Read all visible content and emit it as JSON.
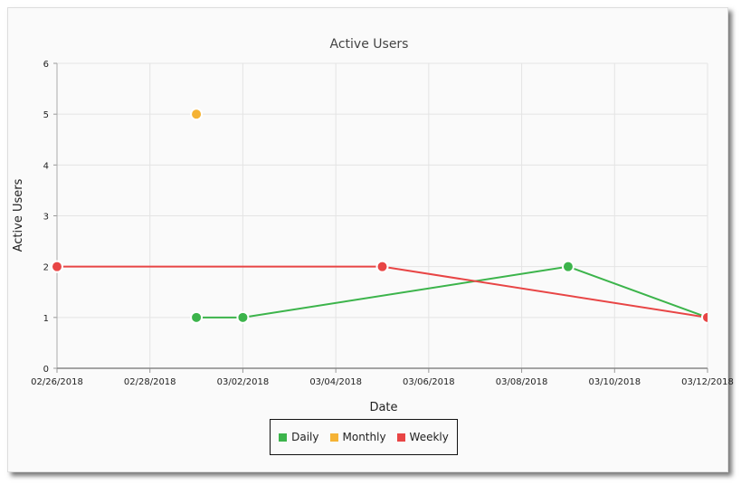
{
  "chart_data": {
    "type": "line",
    "title": "Active Users",
    "xlabel": "Date",
    "ylabel": "Active Users",
    "xlim": [
      "02/26/2018",
      "03/12/2018"
    ],
    "ylim": [
      0,
      6
    ],
    "x_ticks": [
      "02/26/2018",
      "02/28/2018",
      "03/02/2018",
      "03/04/2018",
      "03/06/2018",
      "03/08/2018",
      "03/10/2018",
      "03/12/2018"
    ],
    "y_ticks": [
      0,
      1,
      2,
      3,
      4,
      5,
      6
    ],
    "grid": true,
    "legend_placement": "bottom",
    "series": [
      {
        "name": "Daily",
        "color": "#3cb44b",
        "points": [
          [
            "03/01/2018",
            1
          ],
          [
            "03/02/2018",
            1
          ],
          [
            "03/09/2018",
            2
          ],
          [
            "03/12/2018",
            1
          ]
        ]
      },
      {
        "name": "Monthly",
        "color": "#f5b335",
        "points": [
          [
            "03/01/2018",
            5
          ]
        ]
      },
      {
        "name": "Weekly",
        "color": "#e84545",
        "points": [
          [
            "02/26/2018",
            2
          ],
          [
            "03/05/2018",
            2
          ],
          [
            "03/12/2018",
            1
          ]
        ]
      }
    ]
  }
}
